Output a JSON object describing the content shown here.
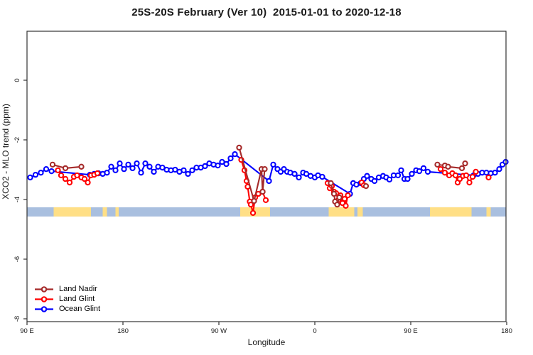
{
  "title": "25S-20S February (Ver 10)  2015-01-01 to 2020-12-18",
  "chart_data": {
    "type": "scatter",
    "title": "25S-20S February (Ver 10)  2015-01-01 to 2020-12-18",
    "xlabel": "Longitude",
    "ylabel": "XCO2 - MLO trend (ppm)",
    "grid": false,
    "legend_position": "bottom-left",
    "x_axis": {
      "unit": "degrees along axis starting at 90E, wrapping through 180, 90W, 0, back to 180",
      "range_deg": [
        0,
        450
      ],
      "ticks": [
        {
          "d": 0,
          "label": "90 E"
        },
        {
          "d": 90,
          "label": "180"
        },
        {
          "d": 180,
          "label": "90 W"
        },
        {
          "d": 270,
          "label": "0"
        },
        {
          "d": 360,
          "label": "90 E"
        },
        {
          "d": 450,
          "label": "180"
        }
      ]
    },
    "y_axis": {
      "range": [
        -8.2,
        1.65
      ],
      "ticks": [
        {
          "v": 0,
          "label": "0"
        },
        {
          "v": -2,
          "label": "-2"
        },
        {
          "v": -4,
          "label": "-4"
        },
        {
          "v": -6,
          "label": "-6"
        },
        {
          "v": -8,
          "label": "-8"
        }
      ]
    },
    "land_ocean_band": {
      "v_top": -4.26,
      "v_bottom": -4.57,
      "ocean_color": "#a9bfdf",
      "land_color": "#ffdf86",
      "land_segments_deg": [
        [
          25,
          60
        ],
        [
          71,
          75
        ],
        [
          83,
          86
        ],
        [
          200,
          228
        ],
        [
          283,
          307
        ],
        [
          310,
          315
        ],
        [
          378,
          417
        ],
        [
          431,
          435
        ]
      ]
    },
    "series": [
      {
        "name": "Land Nadir",
        "color": "#A52A2A",
        "clusters": [
          [
            [
              24,
              -2.83
            ],
            [
              36,
              -2.95
            ],
            [
              51,
              -2.9
            ]
          ],
          [
            [
              199,
              -2.26
            ],
            [
              213,
              -4.05
            ],
            [
              220,
              -2.98
            ],
            [
              221,
              -3.74
            ],
            [
              223,
              -2.98
            ]
          ],
          [
            [
              285,
              -3.45
            ],
            [
              288,
              -3.81
            ],
            [
              289,
              -4.07
            ],
            [
              291,
              -4.17
            ],
            [
              293,
              -3.93
            ]
          ],
          [
            [
              318,
              -3.55
            ]
          ],
          [
            [
              385,
              -2.83
            ],
            [
              392,
              -2.86
            ],
            [
              395,
              -2.9
            ],
            [
              408,
              -2.95
            ],
            [
              411,
              -2.79
            ]
          ]
        ]
      },
      {
        "name": "Land Glint",
        "color": "#FF0000",
        "clusters": [
          [
            [
              29,
              -3.02
            ],
            [
              32,
              -3.19
            ],
            [
              36,
              -3.31
            ],
            [
              40,
              -3.43
            ],
            [
              44,
              -3.24
            ],
            [
              47,
              -3.19
            ],
            [
              51,
              -3.26
            ],
            [
              54,
              -3.31
            ],
            [
              57,
              -3.43
            ],
            [
              60,
              -3.19
            ],
            [
              63,
              -3.17
            ],
            [
              66,
              -3.12
            ]
          ],
          [
            [
              201,
              -2.67
            ],
            [
              204,
              -3.02
            ],
            [
              206,
              -3.38
            ],
            [
              207,
              -3.57
            ],
            [
              209,
              -4.07
            ],
            [
              210,
              -4.17
            ],
            [
              212,
              -4.45
            ],
            [
              214,
              -3.93
            ],
            [
              217,
              -3.81
            ],
            [
              221,
              -3.74
            ],
            [
              224,
              -4.02
            ]
          ],
          [
            [
              282,
              -3.45
            ],
            [
              284,
              -3.62
            ],
            [
              286,
              -3.55
            ],
            [
              288,
              -3.74
            ],
            [
              290,
              -3.79
            ],
            [
              292,
              -4.02
            ],
            [
              294,
              -3.86
            ],
            [
              296,
              -4.12
            ],
            [
              298,
              -3.98
            ],
            [
              299,
              -4.21
            ],
            [
              301,
              -3.86
            ]
          ],
          [
            [
              314,
              -3.43
            ],
            [
              316,
              -3.52
            ]
          ],
          [
            [
              388,
              -2.98
            ],
            [
              392,
              -3.1
            ],
            [
              396,
              -3.19
            ],
            [
              399,
              -3.12
            ],
            [
              402,
              -3.19
            ],
            [
              404,
              -3.43
            ],
            [
              406,
              -3.31
            ],
            [
              409,
              -3.21
            ],
            [
              412,
              -3.19
            ],
            [
              415,
              -3.43
            ],
            [
              418,
              -3.24
            ],
            [
              421,
              -3.07
            ]
          ],
          [
            [
              433,
              -3.26
            ]
          ]
        ]
      },
      {
        "name": "Ocean Glint",
        "color": "#0000FF",
        "clusters": [
          [
            [
              3,
              -3.26
            ],
            [
              8,
              -3.17
            ],
            [
              13,
              -3.1
            ],
            [
              18,
              -2.98
            ],
            [
              23,
              -3.05
            ],
            [
              59,
              -3.17
            ],
            [
              63,
              -3.14
            ],
            [
              67,
              -3.12
            ],
            [
              71,
              -3.14
            ],
            [
              75,
              -3.1
            ],
            [
              79,
              -2.9
            ],
            [
              83,
              -3.02
            ],
            [
              87,
              -2.79
            ],
            [
              91,
              -2.98
            ],
            [
              95,
              -2.83
            ],
            [
              99,
              -2.95
            ],
            [
              103,
              -2.79
            ],
            [
              107,
              -3.1
            ],
            [
              111,
              -2.79
            ],
            [
              115,
              -2.9
            ],
            [
              119,
              -3.07
            ],
            [
              123,
              -2.9
            ],
            [
              127,
              -2.93
            ],
            [
              131,
              -3.0
            ],
            [
              135,
              -3.02
            ],
            [
              139,
              -3.0
            ],
            [
              143,
              -3.07
            ],
            [
              147,
              -3.02
            ],
            [
              151,
              -3.14
            ],
            [
              155,
              -3.02
            ],
            [
              159,
              -2.93
            ],
            [
              163,
              -2.93
            ],
            [
              167,
              -2.88
            ],
            [
              171,
              -2.79
            ],
            [
              175,
              -2.83
            ],
            [
              179,
              -2.86
            ],
            [
              183,
              -2.74
            ],
            [
              187,
              -2.81
            ],
            [
              191,
              -2.62
            ],
            [
              195,
              -2.48
            ],
            [
              227,
              -3.38
            ],
            [
              231,
              -2.83
            ],
            [
              235,
              -2.98
            ],
            [
              238,
              -3.07
            ],
            [
              241,
              -2.98
            ],
            [
              244,
              -3.07
            ],
            [
              247,
              -3.1
            ],
            [
              251,
              -3.14
            ],
            [
              255,
              -3.26
            ],
            [
              259,
              -3.1
            ],
            [
              262,
              -3.14
            ],
            [
              266,
              -3.21
            ],
            [
              270,
              -3.26
            ],
            [
              273,
              -3.19
            ],
            [
              277,
              -3.24
            ],
            [
              303,
              -3.81
            ],
            [
              306,
              -3.45
            ],
            [
              309,
              -3.5
            ],
            [
              313,
              -3.45
            ],
            [
              316,
              -3.31
            ],
            [
              319,
              -3.21
            ],
            [
              323,
              -3.31
            ],
            [
              326,
              -3.38
            ],
            [
              330,
              -3.26
            ],
            [
              334,
              -3.21
            ],
            [
              337,
              -3.26
            ],
            [
              340,
              -3.33
            ],
            [
              344,
              -3.19
            ],
            [
              348,
              -3.19
            ],
            [
              351,
              -3.02
            ],
            [
              354,
              -3.31
            ],
            [
              357,
              -3.31
            ],
            [
              361,
              -3.14
            ],
            [
              365,
              -3.02
            ],
            [
              368,
              -3.05
            ],
            [
              372,
              -2.95
            ],
            [
              376,
              -3.07
            ],
            [
              419,
              -3.19
            ],
            [
              423,
              -3.14
            ],
            [
              427,
              -3.1
            ],
            [
              431,
              -3.1
            ],
            [
              435,
              -3.12
            ],
            [
              439,
              -3.1
            ],
            [
              443,
              -2.98
            ],
            [
              446,
              -2.83
            ],
            [
              449,
              -2.74
            ]
          ]
        ]
      }
    ],
    "legend": [
      "Land Nadir",
      "Land Glint",
      "Ocean Glint"
    ]
  }
}
